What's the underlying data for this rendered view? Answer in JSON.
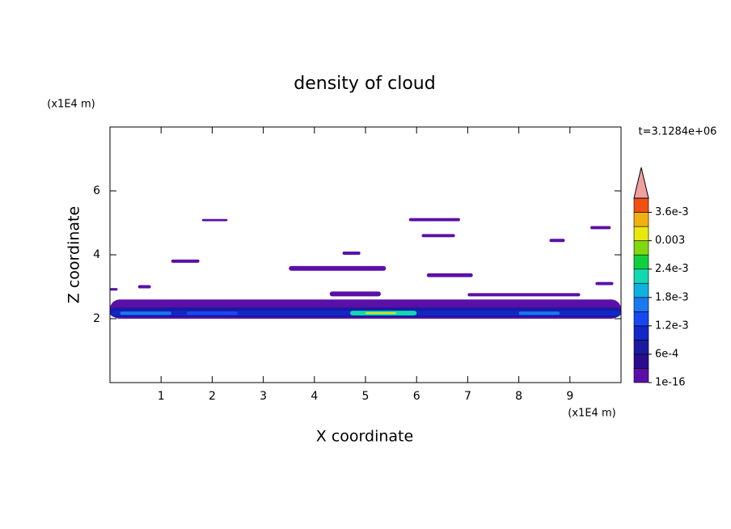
{
  "chart_data": {
    "type": "contour",
    "title": "density of cloud",
    "x_label": "X coordinate",
    "y_label": "Z coordinate",
    "x_unit": "(x1E4 m)",
    "y_unit": "(x1E4 m)",
    "annotation": "t=3.1284e+06",
    "xlim": [
      0,
      10
    ],
    "ylim": [
      0,
      8
    ],
    "xticks": [
      1,
      2,
      3,
      4,
      5,
      6,
      7,
      8,
      9
    ],
    "yticks": [
      2,
      4,
      6
    ],
    "clim": [
      1e-16,
      0.0039
    ],
    "colors": [
      "#5a10a8",
      "#2a0c90",
      "#1a1aa0",
      "#1028c8",
      "#1848f0",
      "#1a78f0",
      "#10b0e0",
      "#10d8b0",
      "#10d040",
      "#80d810",
      "#e8e810",
      "#f0b010",
      "#f05010"
    ],
    "extend_color": "#f0a0a0",
    "cticks": [
      {
        "value": 1e-16,
        "label": "1e-16"
      },
      {
        "value": 0.0006,
        "label": "6e-4"
      },
      {
        "value": 0.0012,
        "label": "1.2e-3"
      },
      {
        "value": 0.0018,
        "label": "1.8e-3"
      },
      {
        "value": 0.0024,
        "label": "2.4e-3"
      },
      {
        "value": 0.003,
        "label": "0.003"
      },
      {
        "value": 0.0036,
        "label": "3.6e-3"
      }
    ],
    "regions": [
      {
        "x": [
          0,
          10
        ],
        "z": [
          2.0,
          2.6
        ],
        "level": 0.0001
      },
      {
        "x": [
          0,
          10
        ],
        "z": [
          2.05,
          2.35
        ],
        "level": 0.0007
      },
      {
        "x": [
          0,
          10
        ],
        "z": [
          2.1,
          2.25
        ],
        "level": 0.001
      },
      {
        "x": [
          0.2,
          1.2
        ],
        "z": [
          2.12,
          2.22
        ],
        "level": 0.0017
      },
      {
        "x": [
          1.5,
          2.5
        ],
        "z": [
          2.12,
          2.22
        ],
        "level": 0.0014
      },
      {
        "x": [
          4.7,
          6.0
        ],
        "z": [
          2.1,
          2.25
        ],
        "level": 0.0024
      },
      {
        "x": [
          5.0,
          5.6
        ],
        "z": [
          2.15,
          2.2
        ],
        "level": 0.0033
      },
      {
        "x": [
          8.0,
          8.8
        ],
        "z": [
          2.12,
          2.22
        ],
        "level": 0.0017
      },
      {
        "x": [
          1.8,
          2.3
        ],
        "z": [
          5.05,
          5.12
        ],
        "level": 0.0001
      },
      {
        "x": [
          5.85,
          6.85
        ],
        "z": [
          5.05,
          5.15
        ],
        "level": 0.0001
      },
      {
        "x": [
          6.1,
          6.75
        ],
        "z": [
          4.55,
          4.65
        ],
        "level": 0.0001
      },
      {
        "x": [
          4.55,
          4.9
        ],
        "z": [
          4.0,
          4.1
        ],
        "level": 0.0001
      },
      {
        "x": [
          1.2,
          1.75
        ],
        "z": [
          3.75,
          3.85
        ],
        "level": 0.0001
      },
      {
        "x": [
          3.5,
          5.4
        ],
        "z": [
          3.5,
          3.65
        ],
        "level": 0.0001
      },
      {
        "x": [
          6.2,
          7.1
        ],
        "z": [
          3.3,
          3.42
        ],
        "level": 0.0001
      },
      {
        "x": [
          8.6,
          8.9
        ],
        "z": [
          4.4,
          4.5
        ],
        "level": 0.0001
      },
      {
        "x": [
          9.4,
          9.8
        ],
        "z": [
          4.8,
          4.9
        ],
        "level": 0.0001
      },
      {
        "x": [
          9.5,
          9.85
        ],
        "z": [
          3.05,
          3.15
        ],
        "level": 0.0001
      },
      {
        "x": [
          4.3,
          5.3
        ],
        "z": [
          2.7,
          2.85
        ],
        "level": 0.0001
      },
      {
        "x": [
          0.55,
          0.8
        ],
        "z": [
          2.95,
          3.05
        ],
        "level": 0.0001
      },
      {
        "x": [
          0.0,
          0.15
        ],
        "z": [
          2.88,
          2.96
        ],
        "level": 0.0001
      },
      {
        "x": [
          7.0,
          9.2
        ],
        "z": [
          2.7,
          2.8
        ],
        "level": 0.0001
      }
    ]
  }
}
